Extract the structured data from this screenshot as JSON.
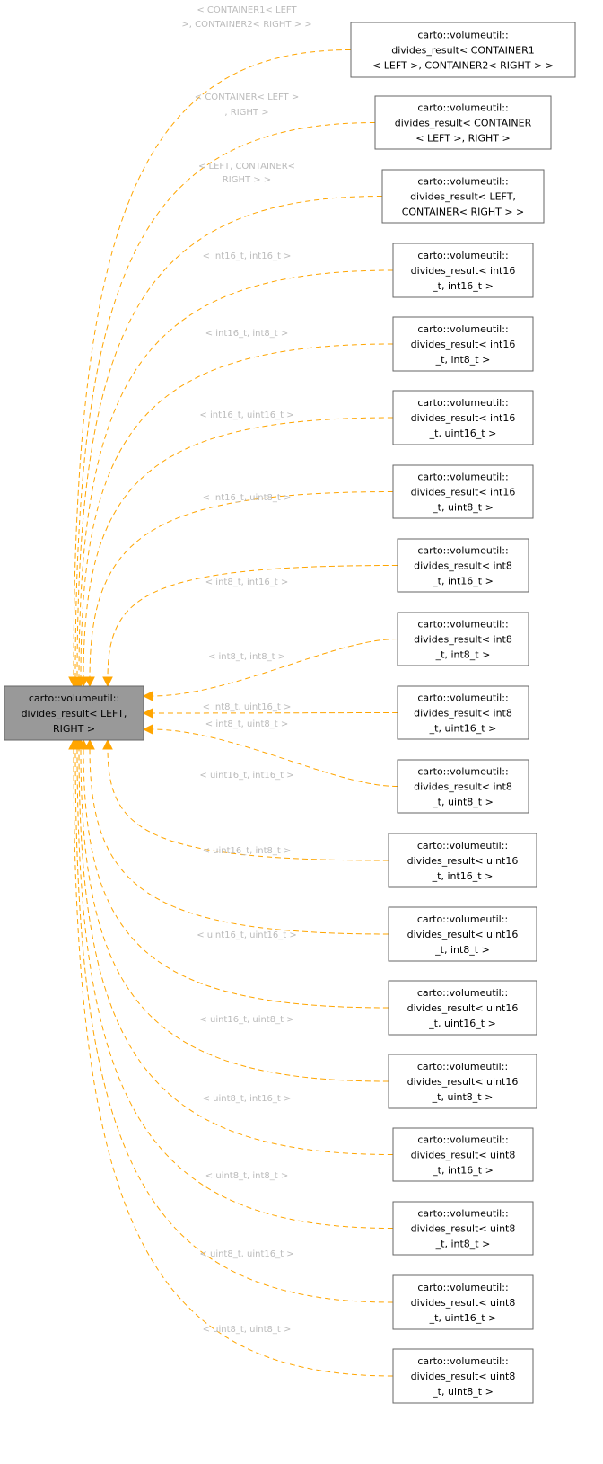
{
  "colors": {
    "edge": "#FFA500",
    "main_fill": "#999999",
    "label": "#BBBBBB"
  },
  "main_node": {
    "lines": [
      "carto::volumeutil::",
      "divides_result< LEFT,",
      "RIGHT >"
    ]
  },
  "nodes": [
    {
      "lines": [
        "carto::volumeutil::",
        "divides_result< CONTAINER1",
        "< LEFT >, CONTAINER2< RIGHT > >"
      ],
      "label": [
        "< CONTAINER1< LEFT",
        ">, CONTAINER2< RIGHT > >"
      ]
    },
    {
      "lines": [
        "carto::volumeutil::",
        "divides_result< CONTAINER",
        "< LEFT >, RIGHT >"
      ],
      "label": [
        "< CONTAINER< LEFT >",
        ", RIGHT >"
      ]
    },
    {
      "lines": [
        "carto::volumeutil::",
        "divides_result< LEFT,",
        "CONTAINER< RIGHT > >"
      ],
      "label": [
        "< LEFT, CONTAINER<",
        "RIGHT > >"
      ]
    },
    {
      "lines": [
        "carto::volumeutil::",
        "divides_result< int16",
        "_t, int16_t >"
      ],
      "label": [
        "< int16_t, int16_t >"
      ]
    },
    {
      "lines": [
        "carto::volumeutil::",
        "divides_result< int16",
        "_t, int8_t >"
      ],
      "label": [
        "< int16_t, int8_t >"
      ]
    },
    {
      "lines": [
        "carto::volumeutil::",
        "divides_result< int16",
        "_t, uint16_t >"
      ],
      "label": [
        "< int16_t, uint16_t >"
      ]
    },
    {
      "lines": [
        "carto::volumeutil::",
        "divides_result< int16",
        "_t, uint8_t >"
      ],
      "label": [
        "< int16_t, uint8_t >"
      ]
    },
    {
      "lines": [
        "carto::volumeutil::",
        "divides_result< int8",
        "_t, int16_t >"
      ],
      "label": [
        "< int8_t, int16_t >"
      ]
    },
    {
      "lines": [
        "carto::volumeutil::",
        "divides_result< int8",
        "_t, int8_t >"
      ],
      "label": [
        "< int8_t, int8_t >"
      ]
    },
    {
      "lines": [
        "carto::volumeutil::",
        "divides_result< int8",
        "_t, uint16_t >"
      ],
      "label": [
        "< int8_t, uint16_t >"
      ]
    },
    {
      "lines": [
        "carto::volumeutil::",
        "divides_result< int8",
        "_t, uint8_t >"
      ],
      "label": [
        "< int8_t, uint8_t >"
      ]
    },
    {
      "lines": [
        "carto::volumeutil::",
        "divides_result< uint16",
        "_t, int16_t >"
      ],
      "label": [
        "< uint16_t, int16_t >"
      ]
    },
    {
      "lines": [
        "carto::volumeutil::",
        "divides_result< uint16",
        "_t, int8_t >"
      ],
      "label": [
        "< uint16_t, int8_t >"
      ]
    },
    {
      "lines": [
        "carto::volumeutil::",
        "divides_result< uint16",
        "_t, uint16_t >"
      ],
      "label": [
        "< uint16_t, uint16_t >"
      ]
    },
    {
      "lines": [
        "carto::volumeutil::",
        "divides_result< uint16",
        "_t, uint8_t >"
      ],
      "label": [
        "< uint16_t, uint8_t >"
      ]
    },
    {
      "lines": [
        "carto::volumeutil::",
        "divides_result< uint8",
        "_t, int16_t >"
      ],
      "label": [
        "< uint8_t, int16_t >"
      ]
    },
    {
      "lines": [
        "carto::volumeutil::",
        "divides_result< uint8",
        "_t, int8_t >"
      ],
      "label": [
        "< uint8_t, int8_t >"
      ]
    },
    {
      "lines": [
        "carto::volumeutil::",
        "divides_result< uint8",
        "_t, uint16_t >"
      ],
      "label": [
        "< uint8_t, uint16_t >"
      ]
    },
    {
      "lines": [
        "carto::volumeutil::",
        "divides_result< uint8",
        "_t, uint8_t >"
      ],
      "label": [
        "< uint8_t, uint8_t >"
      ]
    }
  ]
}
